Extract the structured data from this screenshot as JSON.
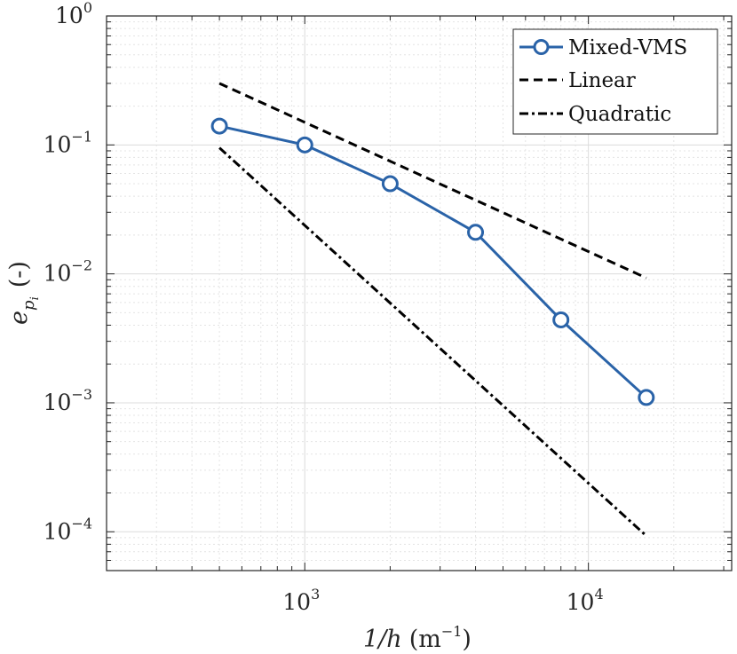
{
  "chart_data": {
    "type": "line",
    "xscale": "log",
    "yscale": "log",
    "xlim": [
      200,
      32000
    ],
    "ylim": [
      5e-05,
      1
    ],
    "grid": true,
    "minor_grid": true,
    "xlabel_main": "1/h",
    "xlabel_unit": "(m",
    "xlabel_exp": "−1",
    "xlabel_close": ")",
    "ylabel_main": "e",
    "ylabel_sub": "p",
    "ylabel_subsub": "i",
    "ylabel_unit": "(-)",
    "x_ticks": [
      {
        "value": 1000,
        "base": "10",
        "exp": "3"
      },
      {
        "value": 10000,
        "base": "10",
        "exp": "4"
      }
    ],
    "y_ticks": [
      {
        "value": 1,
        "base": "10",
        "exp": "0"
      },
      {
        "value": 0.1,
        "base": "10",
        "exp": "−1"
      },
      {
        "value": 0.01,
        "base": "10",
        "exp": "−2"
      },
      {
        "value": 0.001,
        "base": "10",
        "exp": "−3"
      },
      {
        "value": 0.0001,
        "base": "10",
        "exp": "−4"
      }
    ],
    "legend_position": "top-right",
    "series": [
      {
        "name": "Mixed-VMS",
        "style": "solid-circle-markers",
        "color": "#2a63a8",
        "x": [
          500,
          1000,
          2000,
          4000,
          8000,
          16000
        ],
        "y": [
          0.14,
          0.1,
          0.05,
          0.021,
          0.0044,
          0.0011
        ]
      },
      {
        "name": "Linear",
        "style": "dashed",
        "color": "#000000",
        "x": [
          500,
          16000
        ],
        "y": [
          0.3,
          0.0093
        ]
      },
      {
        "name": "Quadratic",
        "style": "dash-dot",
        "color": "#000000",
        "x": [
          500,
          16000
        ],
        "y": [
          0.095,
          9.3e-05
        ]
      }
    ]
  }
}
